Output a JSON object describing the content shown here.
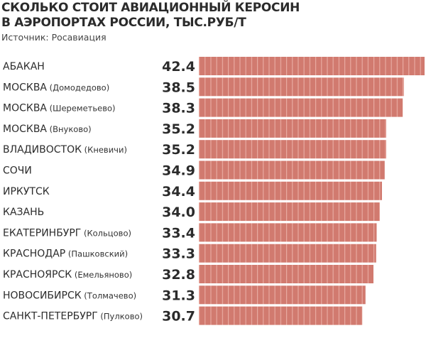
{
  "chart_data": {
    "type": "bar",
    "orientation": "horizontal",
    "title": [
      "СКОЛЬКО СТОИТ АВИАЦИОННЫЙ КЕРОСИН",
      "В АЭРОПОРТАХ РОССИИ, ТЫС.РУБ/Т"
    ],
    "source": "Источник: Росавиация",
    "categories": [
      {
        "main": "АБАКАН",
        "sub": ""
      },
      {
        "main": "МОСКВА",
        "sub": "(Домодедово)"
      },
      {
        "main": "МОСКВА",
        "sub": "(Шереметьево)"
      },
      {
        "main": "МОСКВА",
        "sub": "(Внуково)"
      },
      {
        "main": "ВЛАДИВОСТОК",
        "sub": "(Кневичи)"
      },
      {
        "main": "СОЧИ",
        "sub": ""
      },
      {
        "main": "ИРКУТСК",
        "sub": ""
      },
      {
        "main": "КАЗАНЬ",
        "sub": ""
      },
      {
        "main": "ЕКАТЕРИНБУРГ",
        "sub": "(Кольцово)"
      },
      {
        "main": "КРАСНОДАР",
        "sub": "(Пашковский)"
      },
      {
        "main": "КРАСНОЯРСК",
        "sub": "(Емельяново)"
      },
      {
        "main": "НОВОСИБИРСК",
        "sub": "(Толмачево)"
      },
      {
        "main": "САНКТ-ПЕТЕРБУРГ",
        "sub": "(Пулково)"
      }
    ],
    "values": [
      42.4,
      38.5,
      38.3,
      35.2,
      35.2,
      34.9,
      34.4,
      34.0,
      33.4,
      33.3,
      32.8,
      31.3,
      30.7
    ],
    "value_labels": [
      "42.4",
      "38.5",
      "38.3",
      "35.2",
      "35.2",
      "34.9",
      "34.4",
      "34.0",
      "33.4",
      "33.3",
      "32.8",
      "31.3",
      "30.7"
    ],
    "xlim": [
      0,
      42.4
    ],
    "grid": false,
    "colors": {
      "bar": "#d17a6f",
      "bar_stripe": "#e8aaa1",
      "text": "#2b2b2b"
    }
  }
}
